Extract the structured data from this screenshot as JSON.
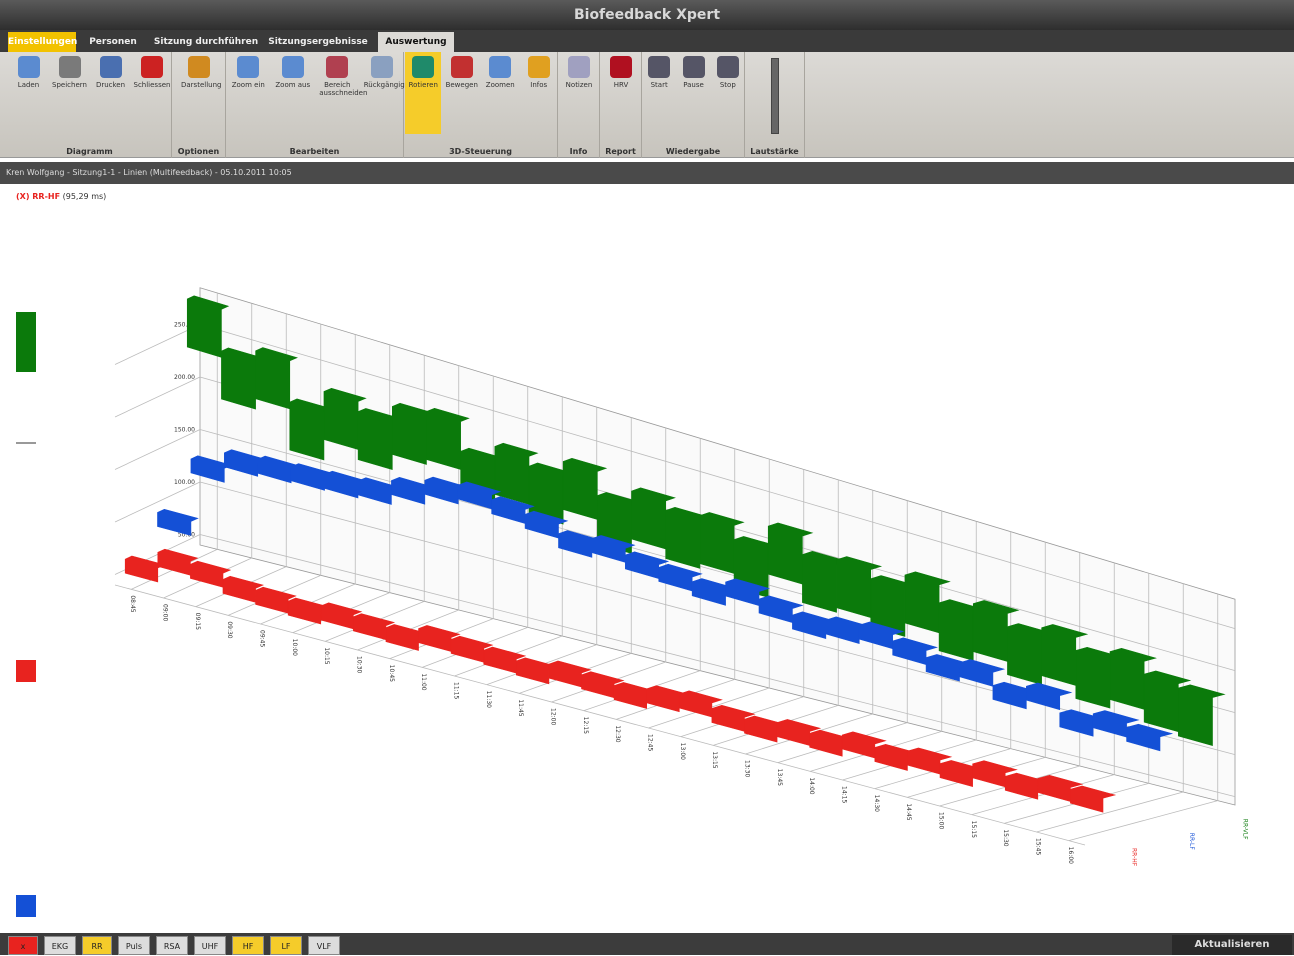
{
  "window": {
    "title": "Biofeedback Xpert"
  },
  "ribbon": {
    "tabs": [
      "Einstellungen",
      "Personen",
      "Sitzung durchführen",
      "Sitzungsergebnisse",
      "Auswertung"
    ],
    "groups": [
      {
        "label": "Diagramm",
        "buttons": [
          "Laden",
          "Speichern",
          "Drucken",
          "Schliessen"
        ]
      },
      {
        "label": "Optionen",
        "buttons": [
          "Darstellung"
        ]
      },
      {
        "label": "Bearbeiten",
        "buttons": [
          "Zoom ein",
          "Zoom aus",
          "Bereich ausschneiden",
          "Rückgängig"
        ]
      },
      {
        "label": "3D-Steuerung",
        "buttons": [
          "Rotieren",
          "Bewegen",
          "Zoomen",
          "Infos"
        ]
      },
      {
        "label": "Info",
        "buttons": [
          "Notizen"
        ]
      },
      {
        "label": "Report",
        "buttons": [
          "HRV"
        ]
      },
      {
        "label": "Wiedergabe",
        "buttons": [
          "Start",
          "Pause",
          "Stop"
        ]
      },
      {
        "label": "Lautstärke",
        "buttons": []
      }
    ]
  },
  "info_bar": "Kren Wolfgang  -  Sitzung1-1  -  Linien (Multifeedback)  -  05.10.2011  10:05",
  "chart_caption": {
    "marker": "(X) RR-HF",
    "value": "(95,29 ms)"
  },
  "chart_data": {
    "type": "line3d",
    "categories": [
      "08:45",
      "09:00",
      "09:15",
      "09:30",
      "09:45",
      "10:00",
      "10:15",
      "10:30",
      "10:45",
      "11:00",
      "11:15",
      "11:30",
      "11:45",
      "12:00",
      "12:15",
      "12:30",
      "12:45",
      "13:00",
      "13:15",
      "13:30",
      "13:45",
      "14:00",
      "14:15",
      "14:30",
      "14:45",
      "15:00",
      "15:15",
      "15:30",
      "15:45",
      "16:00"
    ],
    "ylim": [
      40,
      285
    ],
    "yticks": [
      {
        "value": 50,
        "label": "50.00"
      },
      {
        "value": 100,
        "label": "100.00"
      },
      {
        "value": 150,
        "label": "150.00"
      },
      {
        "value": 200,
        "label": "200.00"
      },
      {
        "value": 250,
        "label": "250.00"
      }
    ],
    "grid": true,
    "series": [
      {
        "name": "RR-VLF",
        "color": "#0b7a0b",
        "values": [
          280,
          240,
          250,
          210,
          230,
          220,
          235,
          240,
          210,
          225,
          215,
          230,
          205,
          220,
          210,
          215,
          200,
          225,
          205,
          210,
          200,
          215,
          195,
          205,
          190,
          200,
          185,
          195,
          180,
          175
        ]
      },
      {
        "name": "RR-LF",
        "color": "#1450d6",
        "values": [
          90,
          150,
          165,
          168,
          170,
          172,
          175,
          185,
          195,
          200,
          195,
          190,
          180,
          185,
          178,
          175,
          170,
          180,
          172,
          165,
          170,
          175,
          168,
          160,
          165,
          150,
          160,
          140,
          150,
          145
        ]
      },
      {
        "name": "RR-HF",
        "color": "#e8231f",
        "values": [
          60,
          75,
          72,
          66,
          64,
          62,
          66,
          64,
          62,
          70,
          68,
          66,
          64,
          70,
          68,
          66,
          72,
          76,
          70,
          68,
          74,
          72,
          80,
          76,
          82,
          78,
          88,
          84,
          92,
          90
        ]
      }
    ]
  },
  "bottom_tabs": [
    "x",
    "EKG",
    "RR",
    "Puls",
    "RSA",
    "UHF",
    "HF",
    "LF",
    "VLF"
  ],
  "refresh_button": "Aktualisieren"
}
